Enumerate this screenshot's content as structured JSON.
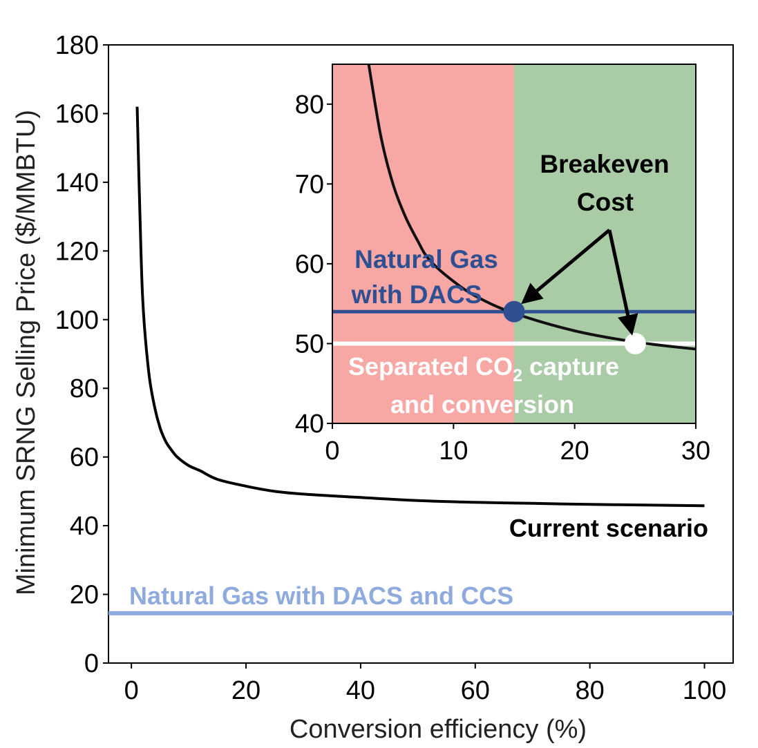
{
  "chart_data": [
    {
      "type": "line",
      "title": "",
      "xlabel": "Conversion efficiency (%)",
      "ylabel": "Minimum SRNG Selling Price ($/MMBTU)",
      "xlim": [
        -4,
        105
      ],
      "ylim": [
        0,
        180
      ],
      "x_ticks": [
        0,
        20,
        40,
        60,
        80,
        100
      ],
      "y_ticks": [
        0,
        20,
        40,
        60,
        80,
        100,
        120,
        140,
        160,
        180
      ],
      "grid": false,
      "series": [
        {
          "name": "Current scenario",
          "color": "#000000",
          "x": [
            1,
            1.5,
            2,
            3,
            4,
            5,
            6,
            7,
            8,
            10,
            12,
            15,
            20,
            25,
            30,
            40,
            50,
            60,
            70,
            80,
            90,
            100
          ],
          "y": [
            162,
            130,
            105,
            85,
            75,
            68.5,
            64.5,
            62,
            60,
            57.5,
            56,
            53.5,
            51.5,
            50,
            49.2,
            48.2,
            47.3,
            46.8,
            46.5,
            46.2,
            46,
            45.8
          ]
        },
        {
          "name": "Natural Gas with DACS and CCS",
          "color": "#8faadc",
          "x": [
            -4,
            105
          ],
          "y": [
            14.5,
            14.5
          ]
        }
      ],
      "annotations": [
        {
          "text": "Current scenario",
          "color": "#000000"
        },
        {
          "text": "Natural Gas with DACS and CCS",
          "color": "#8faadc"
        }
      ]
    },
    {
      "type": "line",
      "title": "",
      "xlabel": "",
      "ylabel": "",
      "xlim": [
        0,
        30
      ],
      "ylim": [
        40,
        85
      ],
      "x_ticks": [
        0,
        10,
        20,
        30
      ],
      "y_ticks": [
        40,
        50,
        60,
        70,
        80
      ],
      "grid": false,
      "regions": [
        {
          "x0": 0,
          "x1": 15,
          "color": "#f8a8a4"
        },
        {
          "x0": 15,
          "x1": 30,
          "color": "#a9cba6"
        }
      ],
      "series": [
        {
          "name": "Current scenario",
          "color": "#111111",
          "x": [
            3,
            4,
            5,
            6,
            7,
            8,
            10,
            12,
            15,
            20,
            25,
            30
          ],
          "y": [
            85,
            76,
            70,
            66,
            63,
            60.5,
            57.8,
            55.8,
            53.8,
            51.6,
            50.2,
            49.3
          ]
        },
        {
          "name": "Natural Gas with DACS",
          "color": "#2f4f93",
          "x": [
            0,
            30
          ],
          "y": [
            54,
            54
          ]
        },
        {
          "name": "Separated CO2 capture and conversion",
          "color": "#ffffff",
          "x": [
            0,
            30
          ],
          "y": [
            50,
            50
          ]
        }
      ],
      "points": [
        {
          "x": 15,
          "y": 54,
          "color": "#2f4f93"
        },
        {
          "x": 25,
          "y": 50,
          "color": "#ffffff"
        }
      ],
      "annotations": [
        {
          "text_line1": "Natural Gas",
          "text_line2": "with DACS",
          "color": "#2f4f93"
        },
        {
          "text_line1": "Separated CO",
          "subscript": "2",
          "text_suffix": " capture",
          "text_line2": "and conversion",
          "color": "#ffffff"
        },
        {
          "text_line1": "Breakeven",
          "text_line2": "Cost",
          "color": "#000000"
        }
      ]
    }
  ]
}
